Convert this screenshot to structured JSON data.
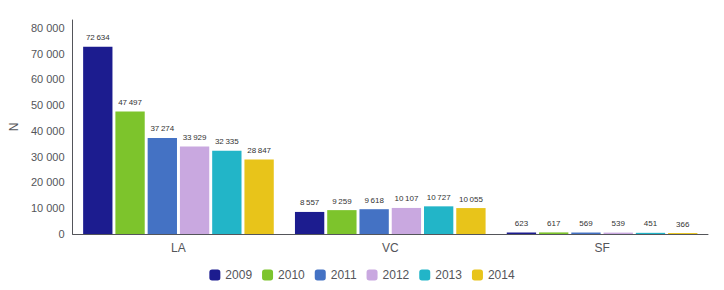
{
  "chart_data": {
    "type": "bar",
    "ylabel": "N",
    "categories": [
      "LA",
      "VC",
      "SF"
    ],
    "series": [
      {
        "name": "2009",
        "color": "#1C1C8F",
        "values": [
          72634,
          8557,
          623
        ],
        "value_labels": [
          "72 634",
          "8 557",
          "623"
        ]
      },
      {
        "name": "2010",
        "color": "#7DC42C",
        "values": [
          47497,
          9259,
          617
        ],
        "value_labels": [
          "47 497",
          "9 259",
          "617"
        ]
      },
      {
        "name": "2011",
        "color": "#4472C4",
        "values": [
          37274,
          9618,
          569
        ],
        "value_labels": [
          "37 274",
          "9 618",
          "569"
        ]
      },
      {
        "name": "2012",
        "color": "#C9A8E0",
        "values": [
          33929,
          10107,
          539
        ],
        "value_labels": [
          "33 929",
          "10 107",
          "539"
        ]
      },
      {
        "name": "2013",
        "color": "#22B5C8",
        "values": [
          32335,
          10727,
          451
        ],
        "value_labels": [
          "32 335",
          "10 727",
          "451"
        ]
      },
      {
        "name": "2014",
        "color": "#E8C41A",
        "values": [
          28847,
          10055,
          366
        ],
        "value_labels": [
          "28 847",
          "10 055",
          "366"
        ]
      }
    ],
    "ylim": [
      0,
      83000
    ],
    "yticks": [
      0,
      {
        "value": 10000,
        "label": "10 000"
      },
      {
        "value": 20000,
        "label": "20 000"
      },
      {
        "value": 30000,
        "label": "30 000"
      },
      {
        "value": 40000,
        "label": "40 000"
      },
      {
        "value": 50000,
        "label": "50 000"
      },
      {
        "value": 60000,
        "label": "60 000"
      },
      {
        "value": 70000,
        "label": "70 000"
      },
      {
        "value": 80000,
        "label": "80 000"
      }
    ],
    "grid": false,
    "legend": "bottom",
    "data_labels": true
  }
}
